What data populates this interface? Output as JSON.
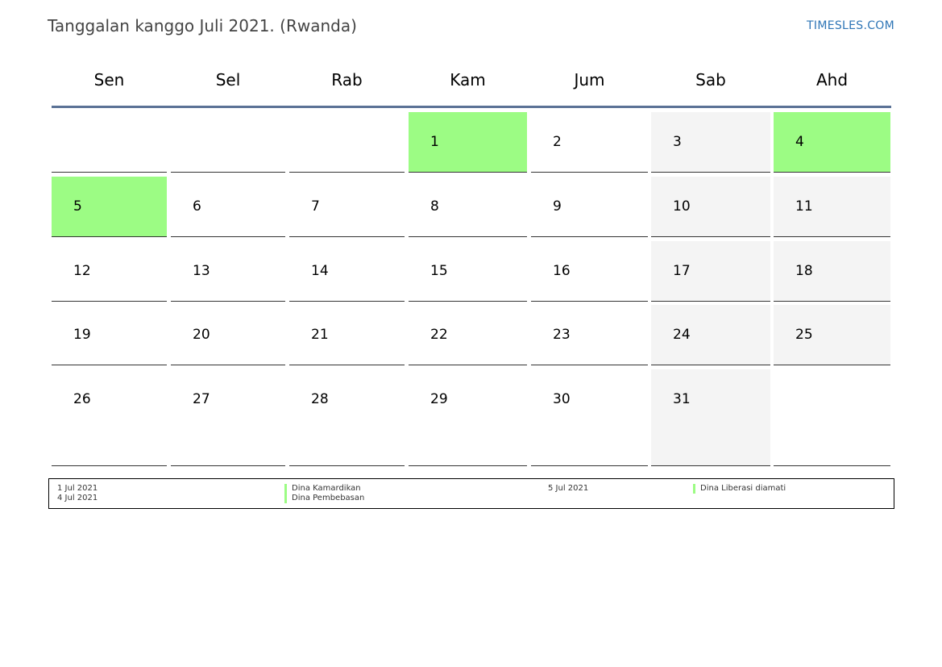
{
  "header": {
    "title": "Tanggalan kanggo Juli 2021. (Rwanda)",
    "brand": "TIMESLES.COM"
  },
  "weekdays": [
    "Sen",
    "Sel",
    "Rab",
    "Kam",
    "Jum",
    "Sab",
    "Ahd"
  ],
  "weeks": [
    [
      "",
      "",
      "",
      "1",
      "2",
      "3",
      "4"
    ],
    [
      "5",
      "6",
      "7",
      "8",
      "9",
      "10",
      "11"
    ],
    [
      "12",
      "13",
      "14",
      "15",
      "16",
      "17",
      "18"
    ],
    [
      "19",
      "20",
      "21",
      "22",
      "23",
      "24",
      "25"
    ],
    [
      "26",
      "27",
      "28",
      "29",
      "30",
      "31",
      ""
    ]
  ],
  "holiday_days": [
    "1",
    "4",
    "5"
  ],
  "colors": {
    "holiday": "#9cfc84",
    "weekend": "#f4f4f4",
    "header_rule": "#5b7296",
    "brand": "#2e75b6"
  },
  "legend": [
    {
      "date": "1 Jul 2021",
      "name": "Dina Kamardikan"
    },
    {
      "date": "4 Jul 2021",
      "name": "Dina Pembebasan"
    },
    {
      "date": "5 Jul 2021",
      "name": "Dina Liberasi diamati"
    }
  ]
}
